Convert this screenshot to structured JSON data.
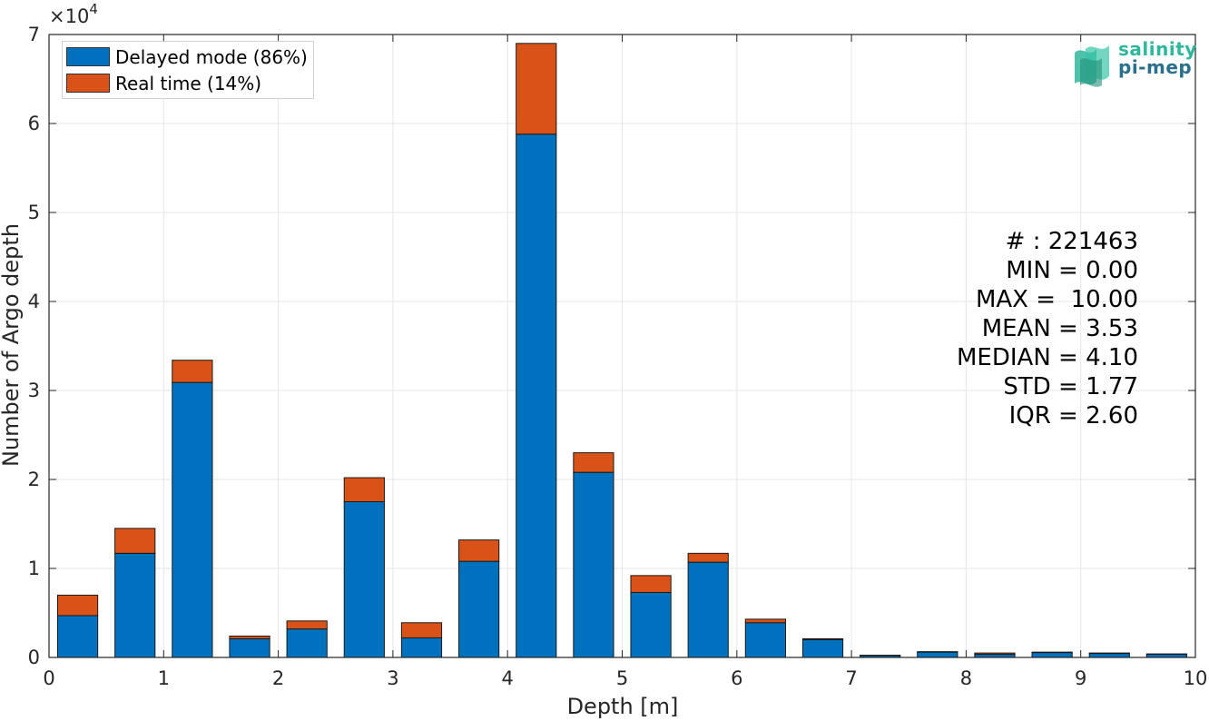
{
  "chart_data": {
    "type": "bar",
    "stacked": true,
    "xlabel": "Depth [m]",
    "ylabel": "Number of Argo depth",
    "y_exponent_label": "×10",
    "y_exponent_power": "4",
    "xlim": [
      0,
      10
    ],
    "ylim": [
      0,
      70000
    ],
    "x_ticks": [
      "0",
      "1",
      "2",
      "3",
      "4",
      "5",
      "6",
      "7",
      "8",
      "9",
      "10"
    ],
    "y_ticks": [
      "0",
      "1",
      "2",
      "3",
      "4",
      "5",
      "6",
      "7"
    ],
    "grid": true,
    "legend_position": "top-left",
    "x": [
      0.25,
      0.75,
      1.25,
      1.75,
      2.25,
      2.75,
      3.25,
      3.75,
      4.25,
      4.75,
      5.25,
      5.75,
      6.25,
      6.75,
      7.25,
      7.75,
      8.25,
      8.75,
      9.25,
      9.75
    ],
    "bar_width": 0.35,
    "series": [
      {
        "name": "Delayed mode (86%)",
        "color": "#0072bd",
        "values": [
          4700,
          11700,
          30900,
          2100,
          3200,
          17500,
          2200,
          10800,
          58800,
          20800,
          7300,
          10700,
          3900,
          2000,
          200,
          600,
          350,
          550,
          450,
          350
        ]
      },
      {
        "name": "Real time (14%)",
        "color": "#d95319",
        "values": [
          2300,
          2800,
          2500,
          300,
          900,
          2700,
          1700,
          2400,
          10200,
          2200,
          1900,
          1000,
          400,
          100,
          50,
          50,
          150,
          50,
          50,
          50
        ]
      }
    ]
  },
  "stats": {
    "count": "# : 221463",
    "min": "MIN = 0.00",
    "max": "MAX =  10.00",
    "mean": "MEAN = 3.53",
    "median": "MEDIAN = 4.10",
    "std": "STD = 1.77",
    "iqr": "IQR = 2.60"
  },
  "logo": {
    "line1": "salinity",
    "line2": "pi-mep"
  }
}
